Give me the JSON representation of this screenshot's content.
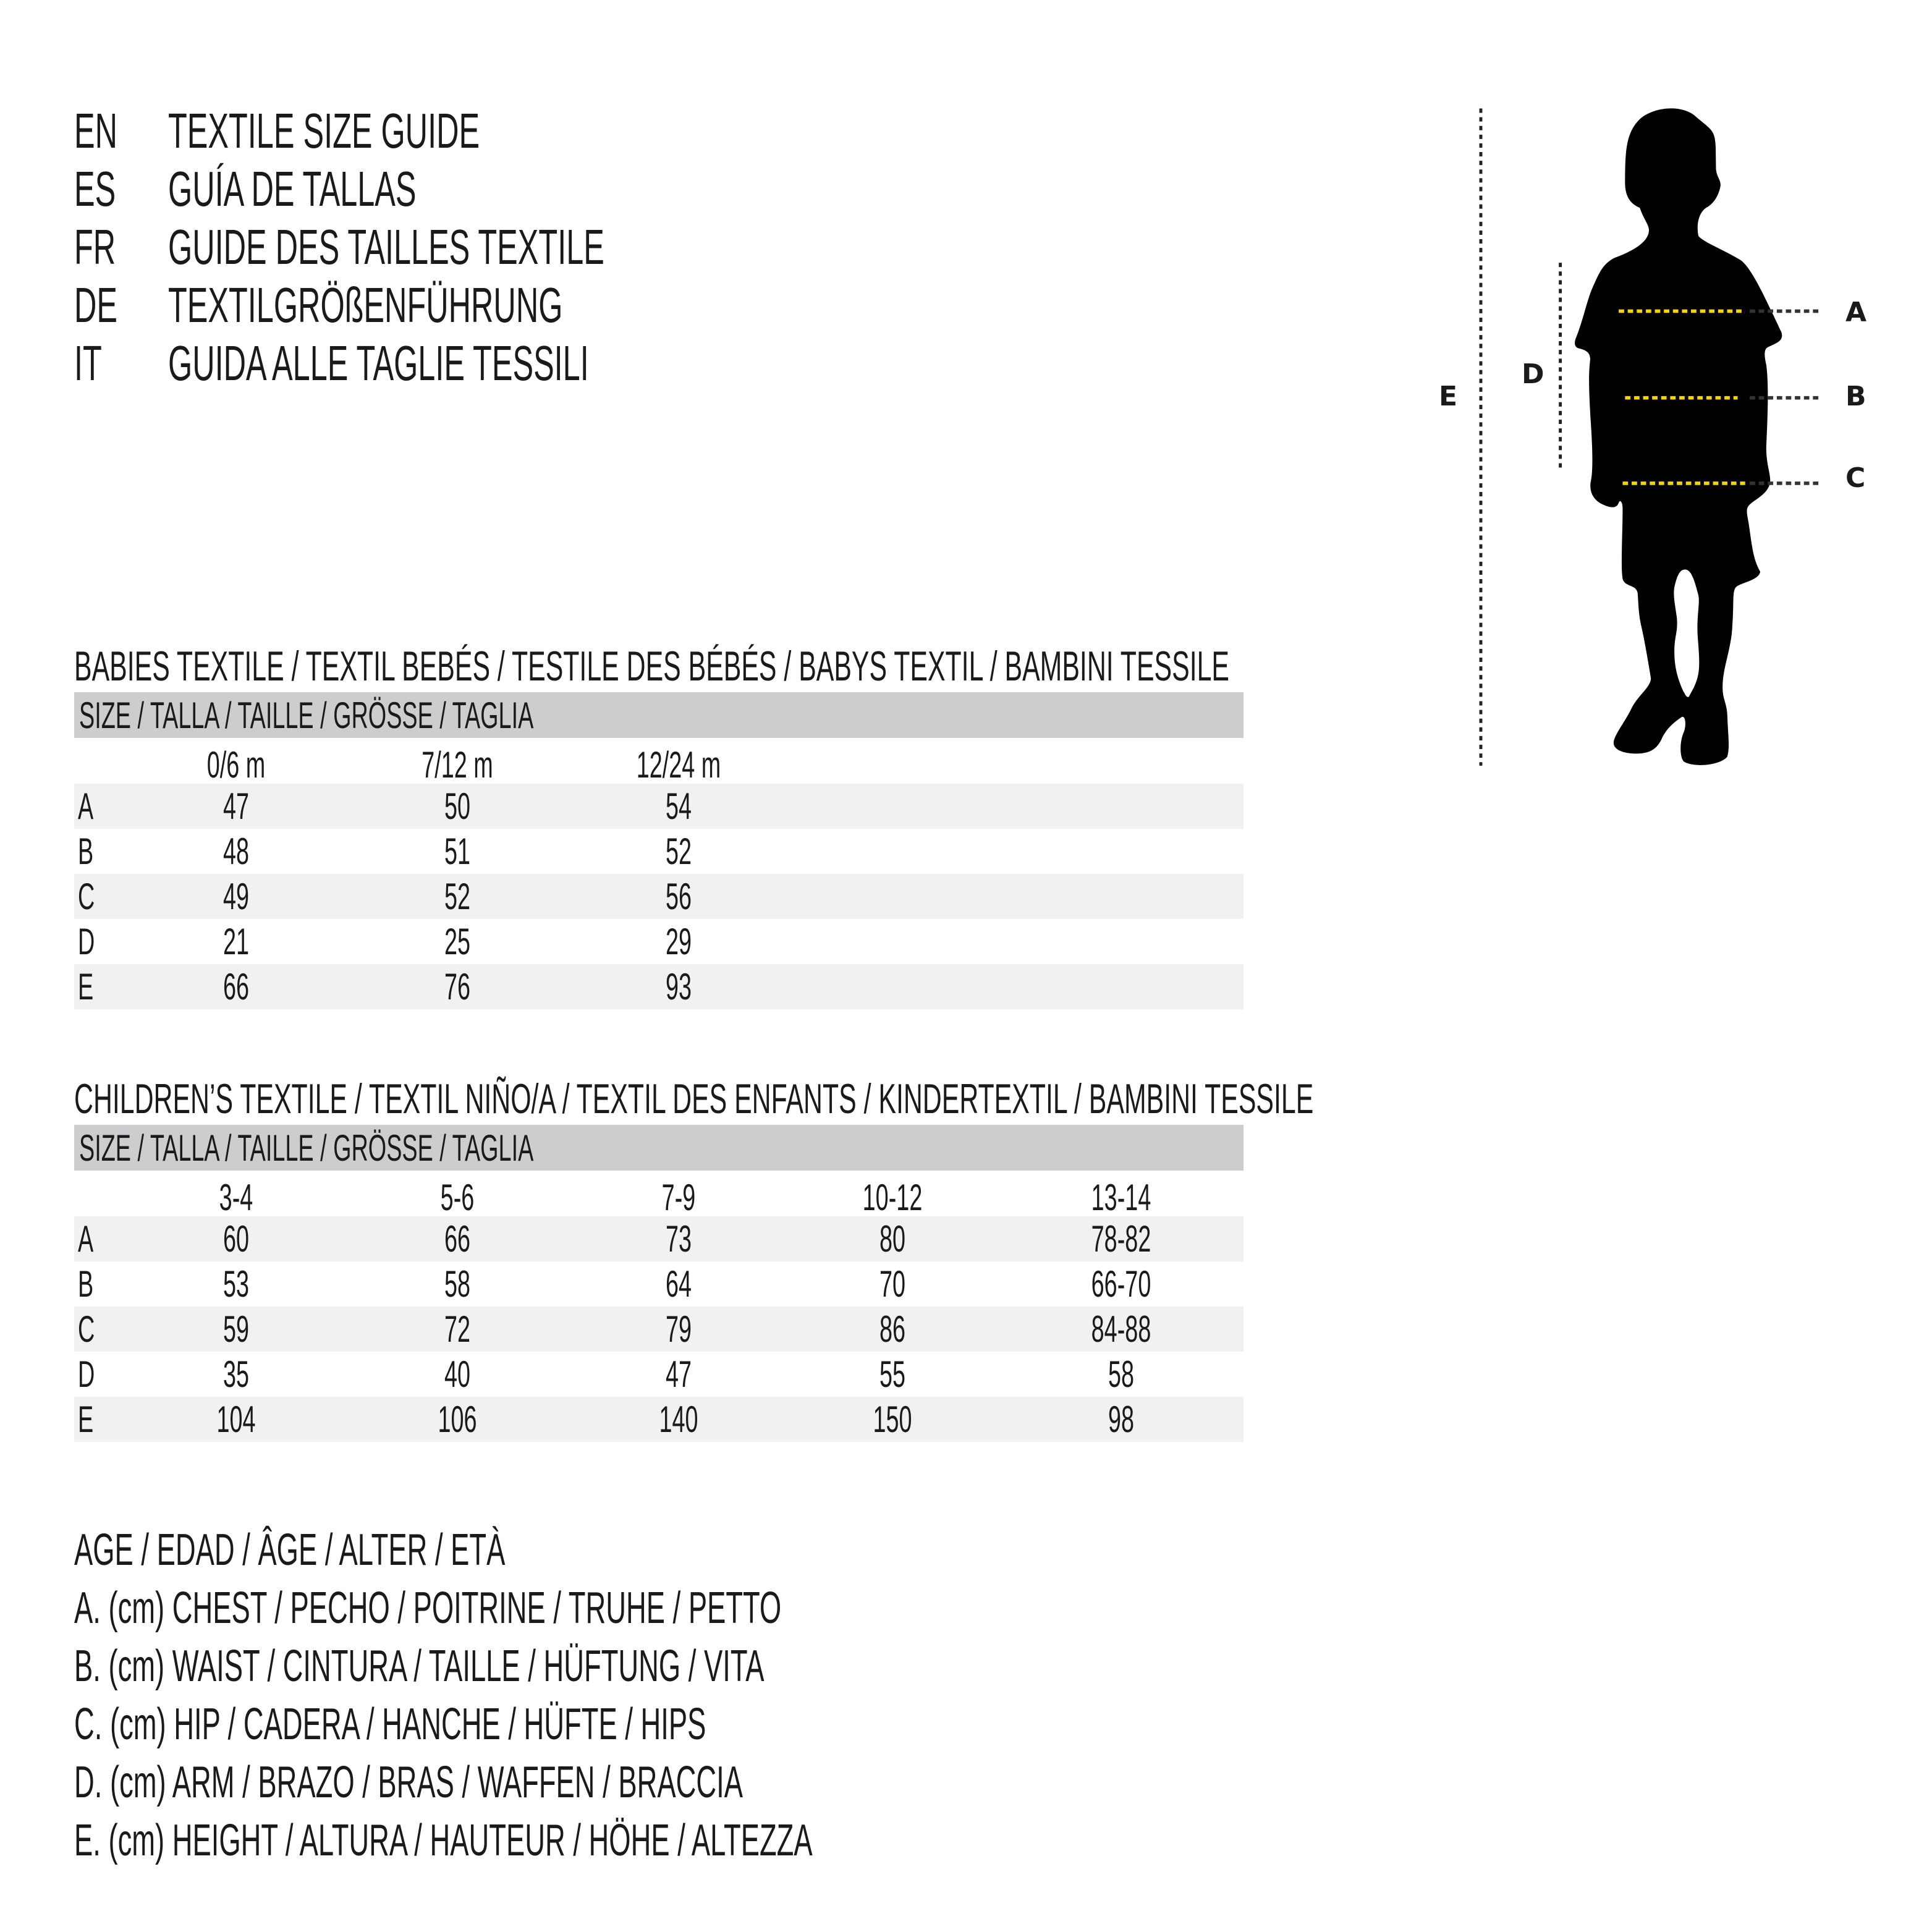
{
  "titles": [
    {
      "lang": "EN",
      "text": "TEXTILE SIZE GUIDE"
    },
    {
      "lang": "ES",
      "text": "GUÍA DE TALLAS"
    },
    {
      "lang": "FR",
      "text": "GUIDE DES TAILLES TEXTILE"
    },
    {
      "lang": "DE",
      "text": "TEXTILGRÖßENFÜHRUNG"
    },
    {
      "lang": "IT",
      "text": "GUIDA ALLE TAGLIE TESSILI"
    }
  ],
  "babies": {
    "heading": "BABIES TEXTILE / TEXTIL BEBÉS / TESTILE DES BÉBÉS / BABYS TEXTIL / BAMBINI TESSILE",
    "size_label": "SIZE / TALLA / TAILLE / GRÖSSE / TAGLIA",
    "columns": [
      "0/6 m",
      "7/12 m",
      "12/24 m"
    ],
    "rows": [
      {
        "label": "A",
        "values": [
          "47",
          "50",
          "54"
        ]
      },
      {
        "label": "B",
        "values": [
          "48",
          "51",
          "52"
        ]
      },
      {
        "label": "C",
        "values": [
          "49",
          "52",
          "56"
        ]
      },
      {
        "label": "D",
        "values": [
          "21",
          "25",
          "29"
        ]
      },
      {
        "label": "E",
        "values": [
          "66",
          "76",
          "93"
        ]
      }
    ]
  },
  "children": {
    "heading": "CHILDREN’S TEXTILE / TEXTIL NIÑO/A / TEXTIL DES ENFANTS / KINDERTEXTIL / BAMBINI TESSILE",
    "size_label": "SIZE / TALLA / TAILLE / GRÖSSE / TAGLIA",
    "columns": [
      "3-4",
      "5-6",
      "7-9",
      "10-12",
      "13-14"
    ],
    "rows": [
      {
        "label": "A",
        "values": [
          "60",
          "66",
          "73",
          "80",
          "78-82"
        ]
      },
      {
        "label": "B",
        "values": [
          "53",
          "58",
          "64",
          "70",
          "66-70"
        ]
      },
      {
        "label": "C",
        "values": [
          "59",
          "72",
          "79",
          "86",
          "84-88"
        ]
      },
      {
        "label": "D",
        "values": [
          "35",
          "40",
          "47",
          "55",
          "58"
        ]
      },
      {
        "label": "E",
        "values": [
          "104",
          "106",
          "140",
          "150",
          "98"
        ]
      }
    ]
  },
  "legend": {
    "age": "AGE / EDAD / ÂGE / ALTER / ETÀ",
    "items": [
      "A. (cm) CHEST / PECHO / POITRINE / TRUHE / PETTO",
      "B. (cm) WAIST / CINTURA / TAILLE / HÜFTUNG / VITA",
      "C. (cm) HIP / CADERA / HANCHE / HÜFTE / HIPS",
      "D. (cm) ARM / BRAZO / BRAS / WAFFEN / BRACCIA",
      "E. (cm) HEIGHT / ALTURA / HAUTEUR / HÖHE / ALTEZZA"
    ]
  },
  "figure": {
    "labels": {
      "A": "A",
      "B": "B",
      "C": "C",
      "D": "D",
      "E": "E"
    },
    "colors": {
      "silhouette": "#000000",
      "measure_line": "#f2d600",
      "guide_line": "#222222"
    },
    "icon": "child-silhouette"
  }
}
